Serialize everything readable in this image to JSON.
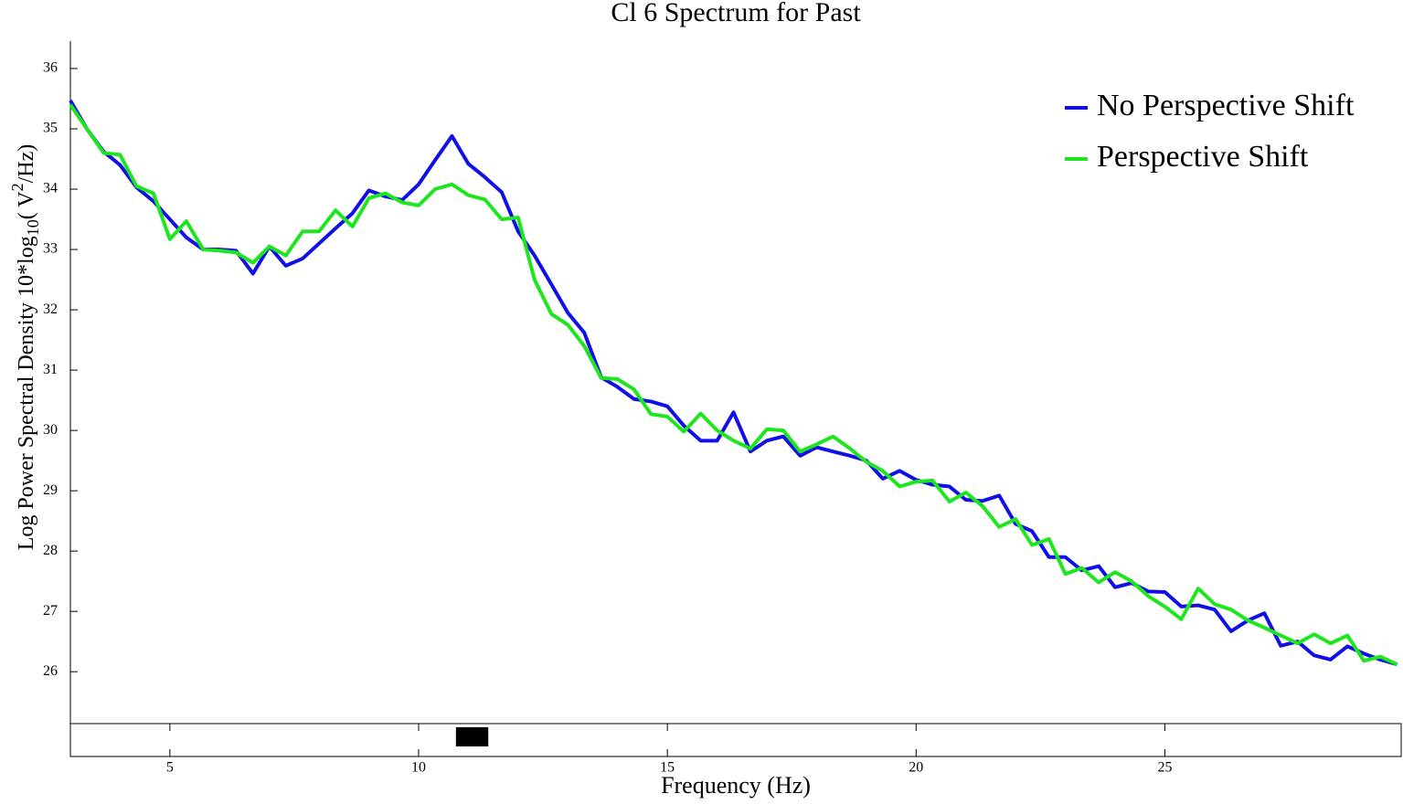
{
  "chart_data": {
    "type": "line",
    "title": "Cl 6 Spectrum for Past",
    "xlabel": "Frequency (Hz)",
    "ylabel_parts": [
      "Log Power Spectral Density 10*log",
      "10",
      "(  V",
      "2",
      "/Hz)"
    ],
    "x": [
      3,
      3.33,
      3.67,
      4,
      4.33,
      4.67,
      5,
      5.33,
      5.67,
      6,
      6.33,
      6.67,
      7,
      7.33,
      7.67,
      8,
      8.33,
      8.67,
      9,
      9.33,
      9.67,
      10,
      10.33,
      10.67,
      11,
      11.33,
      11.67,
      12,
      12.33,
      12.67,
      13,
      13.33,
      13.67,
      14,
      14.33,
      14.67,
      15,
      15.33,
      15.67,
      16,
      16.33,
      16.67,
      17,
      17.33,
      17.67,
      18,
      18.33,
      18.67,
      19,
      19.33,
      19.67,
      20,
      20.33,
      20.67,
      21,
      21.33,
      21.67,
      22,
      22.33,
      22.67,
      23,
      23.33,
      23.67,
      24,
      24.33,
      24.67,
      25,
      25.33,
      25.67,
      26,
      26.33,
      26.67,
      27,
      27.33,
      27.67,
      28,
      28.33,
      28.67,
      29,
      29.33,
      29.67
    ],
    "series": [
      {
        "name": "No Perspective Shift",
        "color": "#1010e6",
        "values": [
          35.47,
          35.0,
          34.62,
          34.4,
          34.03,
          33.8,
          33.5,
          33.2,
          33.0,
          33.0,
          32.98,
          32.6,
          33.05,
          32.73,
          32.85,
          33.1,
          33.35,
          33.6,
          33.98,
          33.88,
          33.82,
          34.08,
          34.48,
          34.88,
          34.42,
          34.2,
          33.95,
          33.3,
          32.9,
          32.42,
          31.95,
          31.62,
          30.88,
          30.72,
          30.52,
          30.48,
          30.4,
          30.08,
          29.83,
          29.83,
          30.3,
          29.65,
          29.83,
          29.9,
          29.58,
          29.72,
          29.65,
          29.58,
          29.5,
          29.2,
          29.33,
          29.18,
          29.1,
          29.07,
          28.85,
          28.83,
          28.92,
          28.45,
          28.33,
          27.9,
          27.9,
          27.68,
          27.75,
          27.4,
          27.47,
          27.33,
          27.32,
          27.08,
          27.1,
          27.03,
          26.67,
          26.85,
          26.97,
          26.43,
          26.5,
          26.27,
          26.2,
          26.42,
          26.3,
          26.2,
          26.12
        ]
      },
      {
        "name": "Perspective Shift",
        "color": "#1ee61e",
        "values": [
          35.4,
          35.0,
          34.6,
          34.57,
          34.05,
          33.93,
          33.17,
          33.47,
          33.0,
          32.98,
          32.95,
          32.78,
          33.05,
          32.9,
          33.3,
          33.3,
          33.65,
          33.38,
          33.85,
          33.93,
          33.78,
          33.73,
          34.0,
          34.08,
          33.9,
          33.83,
          33.5,
          33.53,
          32.5,
          31.93,
          31.75,
          31.4,
          30.87,
          30.85,
          30.68,
          30.27,
          30.23,
          29.98,
          30.28,
          30.0,
          29.83,
          29.7,
          30.02,
          30.0,
          29.65,
          29.77,
          29.9,
          29.7,
          29.48,
          29.33,
          29.07,
          29.15,
          29.17,
          28.82,
          28.97,
          28.75,
          28.4,
          28.53,
          28.1,
          28.2,
          27.62,
          27.72,
          27.48,
          27.65,
          27.5,
          27.25,
          27.08,
          26.87,
          27.38,
          27.12,
          27.03,
          26.85,
          26.73,
          26.6,
          26.47,
          26.62,
          26.47,
          26.6,
          26.18,
          26.25,
          26.12
        ]
      }
    ],
    "highlight_bands": [
      [
        10.75,
        11.4
      ]
    ],
    "xlim": [
      3,
      29.75
    ],
    "xticks": [
      5,
      10,
      15,
      20,
      25
    ],
    "ylim": [
      25.2,
      36.5
    ],
    "yticks": [
      26,
      27,
      28,
      29,
      30,
      31,
      32,
      33,
      34,
      35,
      36
    ],
    "grid": false,
    "legend": "upper right"
  }
}
